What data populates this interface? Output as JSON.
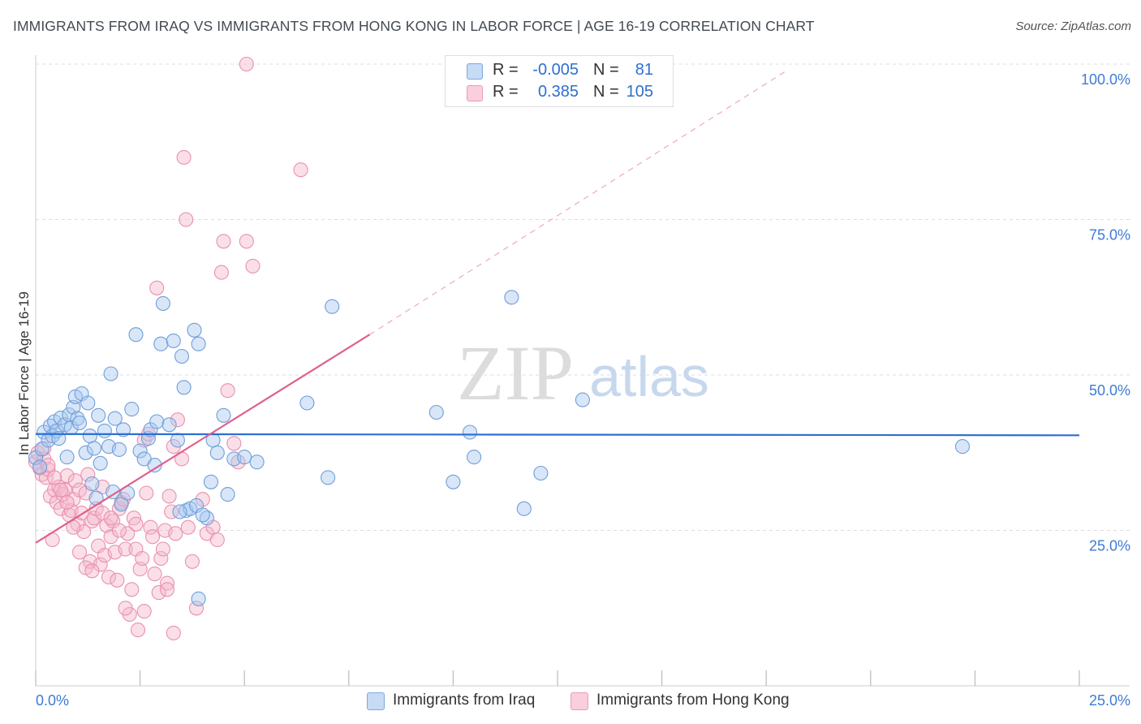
{
  "header": {
    "title": "IMMIGRANTS FROM IRAQ VS IMMIGRANTS FROM HONG KONG IN LABOR FORCE | AGE 16-19 CORRELATION CHART",
    "source": "Source: ZipAtlas.com"
  },
  "watermark": {
    "zip": "ZIP",
    "atlas": "atlas"
  },
  "colors": {
    "iraq_fill": "#a9c8ef",
    "iraq_stroke": "#6f9fd8",
    "iraq_line": "#2e6fd0",
    "hk_fill": "#f5b9cc",
    "hk_stroke": "#e991ae",
    "hk_line": "#e0608c",
    "axis_value": "#3d7bd6",
    "grid": "#dcdcdc"
  },
  "legend_top": {
    "rows": [
      {
        "series": "iraq",
        "r_label": "R =",
        "r_value": "-0.005",
        "n_label": "N =",
        "n_value": "81"
      },
      {
        "series": "hk",
        "r_label": "R =",
        "r_value": "0.385",
        "n_label": "N =",
        "n_value": "105"
      }
    ]
  },
  "legend_bottom": {
    "iraq_label": "Immigrants from Iraq",
    "hk_label": "Immigrants from Hong Kong"
  },
  "chart_data": {
    "type": "scatter",
    "title": "IMMIGRANTS FROM IRAQ VS IMMIGRANTS FROM HONG KONG IN LABOR FORCE | AGE 16-19 CORRELATION CHART",
    "xlabel": "",
    "ylabel": "In Labor Force | Age 16-19",
    "xlim": [
      0,
      25
    ],
    "ylim": [
      0,
      100
    ],
    "x_tick_labels": [
      "0.0%",
      "25.0%"
    ],
    "y_tick_labels": [
      "100.0%",
      "75.0%",
      "50.0%",
      "25.0%"
    ],
    "y_ticks": [
      100,
      75,
      50,
      25
    ],
    "x_minor_ticks": [
      0,
      2.5,
      5,
      7.5,
      10,
      12.5,
      15,
      17.5,
      20,
      22.5,
      25
    ],
    "grid": true,
    "legend_position": "top-center",
    "series": [
      {
        "name": "Immigrants from Iraq",
        "key": "iraq",
        "r": -0.005,
        "n": 81,
        "trend": {
          "x0": 0,
          "y0": 40.5,
          "x1": 25,
          "y1": 40.3,
          "style": "solid"
        },
        "points": [
          [
            0.0,
            36.7
          ],
          [
            0.1,
            35.2
          ],
          [
            0.15,
            38.1
          ],
          [
            0.2,
            40.8
          ],
          [
            0.3,
            39.5
          ],
          [
            0.35,
            41.8
          ],
          [
            0.4,
            40.2
          ],
          [
            0.45,
            42.5
          ],
          [
            0.5,
            41.0
          ],
          [
            0.55,
            39.8
          ],
          [
            0.6,
            43.1
          ],
          [
            0.7,
            42.0
          ],
          [
            0.75,
            36.8
          ],
          [
            0.8,
            43.6
          ],
          [
            0.85,
            41.5
          ],
          [
            0.9,
            44.8
          ],
          [
            0.95,
            46.5
          ],
          [
            1.0,
            43.0
          ],
          [
            1.05,
            42.3
          ],
          [
            1.1,
            47.0
          ],
          [
            1.2,
            37.5
          ],
          [
            1.25,
            45.5
          ],
          [
            1.3,
            40.2
          ],
          [
            1.35,
            32.5
          ],
          [
            1.4,
            38.2
          ],
          [
            1.45,
            30.2
          ],
          [
            1.5,
            43.5
          ],
          [
            1.55,
            35.8
          ],
          [
            1.65,
            41.0
          ],
          [
            1.75,
            38.5
          ],
          [
            1.8,
            50.2
          ],
          [
            1.85,
            31.2
          ],
          [
            1.9,
            43.0
          ],
          [
            2.0,
            38.0
          ],
          [
            2.05,
            29.2
          ],
          [
            2.1,
            41.2
          ],
          [
            2.2,
            31.0
          ],
          [
            2.3,
            44.5
          ],
          [
            2.4,
            56.5
          ],
          [
            2.5,
            37.8
          ],
          [
            2.6,
            36.5
          ],
          [
            2.7,
            39.8
          ],
          [
            2.75,
            41.2
          ],
          [
            2.85,
            35.5
          ],
          [
            2.9,
            42.5
          ],
          [
            3.0,
            55.0
          ],
          [
            3.05,
            61.5
          ],
          [
            3.2,
            42.0
          ],
          [
            3.3,
            55.5
          ],
          [
            3.4,
            39.5
          ],
          [
            3.5,
            53.0
          ],
          [
            3.55,
            48.0
          ],
          [
            3.6,
            28.2
          ],
          [
            3.7,
            28.5
          ],
          [
            3.8,
            57.2
          ],
          [
            3.85,
            29.0
          ],
          [
            3.9,
            55.0
          ],
          [
            4.1,
            27.0
          ],
          [
            4.2,
            32.8
          ],
          [
            4.25,
            39.5
          ],
          [
            4.35,
            37.5
          ],
          [
            4.5,
            43.5
          ],
          [
            4.6,
            30.8
          ],
          [
            4.75,
            36.5
          ],
          [
            5.0,
            36.8
          ],
          [
            5.3,
            36.0
          ],
          [
            6.5,
            45.5
          ],
          [
            7.0,
            33.5
          ],
          [
            7.1,
            61.0
          ],
          [
            9.6,
            44.0
          ],
          [
            10.0,
            32.8
          ],
          [
            10.4,
            40.8
          ],
          [
            10.5,
            36.8
          ],
          [
            11.4,
            62.5
          ],
          [
            11.7,
            28.5
          ],
          [
            12.1,
            34.2
          ],
          [
            13.1,
            46.0
          ],
          [
            22.2,
            38.5
          ],
          [
            3.9,
            14.0
          ],
          [
            4.0,
            27.5
          ],
          [
            3.45,
            28.0
          ]
        ]
      },
      {
        "name": "Immigrants from Hong Kong",
        "key": "hk",
        "r": 0.385,
        "n": 105,
        "trend": {
          "x0": 0,
          "y0": 23.0,
          "x1": 8.0,
          "y1": 56.5,
          "style": "solid",
          "dashed_to": [
            18.0,
            99.0
          ]
        },
        "points": [
          [
            0.0,
            36.0
          ],
          [
            0.05,
            37.5
          ],
          [
            0.1,
            35.0
          ],
          [
            0.15,
            34.0
          ],
          [
            0.2,
            36.5
          ],
          [
            0.25,
            33.5
          ],
          [
            0.3,
            34.8
          ],
          [
            0.35,
            30.5
          ],
          [
            0.4,
            23.5
          ],
          [
            0.45,
            31.5
          ],
          [
            0.5,
            29.5
          ],
          [
            0.55,
            32.0
          ],
          [
            0.6,
            28.5
          ],
          [
            0.65,
            30.8
          ],
          [
            0.7,
            31.5
          ],
          [
            0.75,
            33.8
          ],
          [
            0.8,
            27.5
          ],
          [
            0.85,
            28.2
          ],
          [
            0.9,
            30.0
          ],
          [
            0.95,
            33.0
          ],
          [
            1.0,
            26.0
          ],
          [
            1.05,
            31.5
          ],
          [
            1.1,
            27.8
          ],
          [
            1.15,
            24.8
          ],
          [
            1.2,
            31.0
          ],
          [
            1.25,
            34.0
          ],
          [
            1.3,
            20.0
          ],
          [
            1.35,
            26.5
          ],
          [
            1.4,
            27.0
          ],
          [
            1.45,
            28.5
          ],
          [
            1.5,
            22.5
          ],
          [
            1.55,
            19.5
          ],
          [
            1.6,
            27.8
          ],
          [
            1.65,
            21.0
          ],
          [
            1.7,
            25.8
          ],
          [
            1.75,
            17.5
          ],
          [
            1.8,
            24.0
          ],
          [
            1.85,
            26.5
          ],
          [
            1.9,
            21.5
          ],
          [
            1.95,
            17.0
          ],
          [
            2.0,
            28.5
          ],
          [
            2.05,
            29.5
          ],
          [
            2.1,
            30.0
          ],
          [
            2.15,
            22.0
          ],
          [
            2.2,
            24.5
          ],
          [
            2.25,
            11.5
          ],
          [
            2.3,
            15.5
          ],
          [
            2.35,
            27.0
          ],
          [
            2.4,
            22.0
          ],
          [
            2.45,
            9.0
          ],
          [
            2.5,
            18.8
          ],
          [
            2.55,
            20.5
          ],
          [
            2.6,
            39.5
          ],
          [
            2.65,
            31.0
          ],
          [
            2.7,
            40.5
          ],
          [
            2.75,
            25.5
          ],
          [
            2.8,
            24.0
          ],
          [
            2.85,
            18.0
          ],
          [
            2.9,
            64.0
          ],
          [
            2.95,
            15.0
          ],
          [
            3.0,
            20.5
          ],
          [
            3.05,
            22.0
          ],
          [
            3.1,
            25.0
          ],
          [
            3.15,
            16.5
          ],
          [
            3.2,
            30.5
          ],
          [
            3.25,
            28.0
          ],
          [
            3.3,
            8.5
          ],
          [
            3.35,
            24.5
          ],
          [
            3.4,
            42.8
          ],
          [
            3.5,
            36.5
          ],
          [
            3.55,
            85.0
          ],
          [
            3.6,
            75.0
          ],
          [
            3.65,
            25.5
          ],
          [
            3.75,
            20.0
          ],
          [
            3.85,
            12.5
          ],
          [
            4.0,
            30.0
          ],
          [
            4.1,
            24.5
          ],
          [
            4.25,
            25.5
          ],
          [
            4.35,
            23.5
          ],
          [
            4.45,
            66.5
          ],
          [
            4.5,
            71.5
          ],
          [
            4.6,
            47.5
          ],
          [
            4.75,
            39.0
          ],
          [
            4.85,
            36.0
          ],
          [
            5.05,
            71.5
          ],
          [
            5.2,
            67.5
          ],
          [
            5.05,
            100.0
          ],
          [
            6.35,
            83.0
          ],
          [
            0.2,
            38.2
          ],
          [
            0.3,
            35.5
          ],
          [
            0.45,
            33.5
          ],
          [
            0.6,
            31.5
          ],
          [
            0.75,
            29.5
          ],
          [
            0.9,
            25.5
          ],
          [
            1.05,
            21.5
          ],
          [
            1.2,
            19.0
          ],
          [
            1.35,
            18.5
          ],
          [
            1.6,
            32.0
          ],
          [
            1.8,
            27.0
          ],
          [
            2.0,
            25.0
          ],
          [
            2.15,
            12.5
          ],
          [
            2.4,
            26.0
          ],
          [
            2.6,
            12.0
          ],
          [
            3.15,
            15.5
          ],
          [
            3.3,
            38.5
          ]
        ]
      }
    ]
  }
}
